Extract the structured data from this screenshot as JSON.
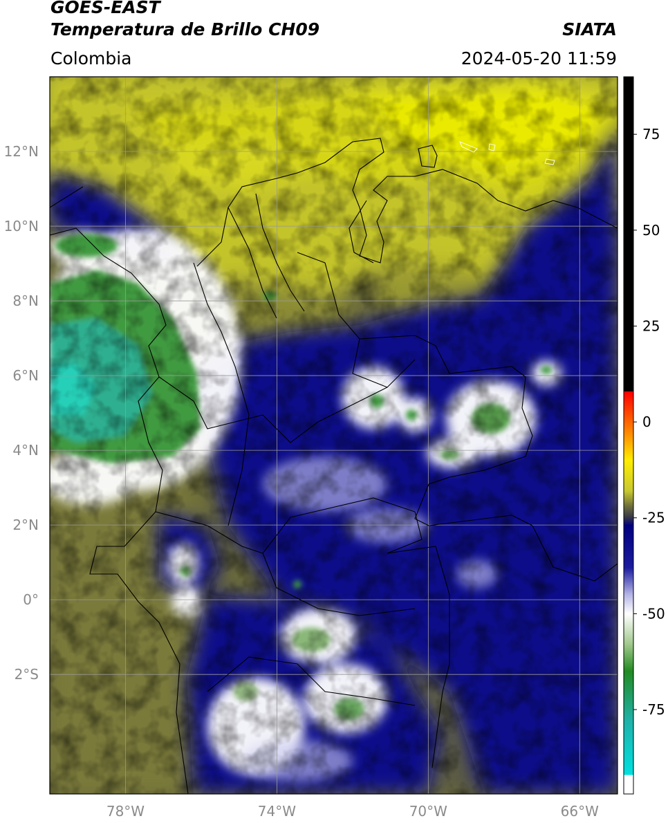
{
  "header": {
    "title_line1": "GOES-EAST",
    "title_line2": "Temperatura de Brillo CH09",
    "agency": "SIATA",
    "region": "Colombia",
    "timestamp": "2024-05-20 11:59"
  },
  "map": {
    "lon_range": [
      -80,
      -65
    ],
    "lat_range": [
      -5.2,
      14
    ],
    "lon_ticks": [
      {
        "value": -78,
        "label": "78°W"
      },
      {
        "value": -74,
        "label": "74°W"
      },
      {
        "value": -70,
        "label": "70°W"
      },
      {
        "value": -66,
        "label": "66°W"
      }
    ],
    "lat_ticks": [
      {
        "value": 12,
        "label": "12°N"
      },
      {
        "value": 10,
        "label": "10°N"
      },
      {
        "value": 8,
        "label": "8°N"
      },
      {
        "value": 6,
        "label": "6°N"
      },
      {
        "value": 4,
        "label": "4°N"
      },
      {
        "value": 2,
        "label": "2°N"
      },
      {
        "value": 0,
        "label": "0°"
      },
      {
        "value": -2,
        "label": "2°S"
      }
    ],
    "grid": true
  },
  "colorbar": {
    "range": [
      -97,
      90
    ],
    "ticks": [
      {
        "value": 75,
        "label": "75"
      },
      {
        "value": 50,
        "label": "50"
      },
      {
        "value": 25,
        "label": "25"
      },
      {
        "value": 0,
        "label": "0"
      },
      {
        "value": -25,
        "label": "-25"
      },
      {
        "value": -50,
        "label": "-50"
      },
      {
        "value": -75,
        "label": "-75"
      }
    ],
    "stops": [
      {
        "value": 90,
        "color": "#000000"
      },
      {
        "value": 8,
        "color": "#000000"
      },
      {
        "value": 7.9,
        "color": "#ff0000"
      },
      {
        "value": -3,
        "color": "#ff8c00"
      },
      {
        "value": -10,
        "color": "#ffee00"
      },
      {
        "value": -18,
        "color": "#c8c832"
      },
      {
        "value": -22,
        "color": "#6e6e3c"
      },
      {
        "value": -25,
        "color": "#34344a"
      },
      {
        "value": -27,
        "color": "#000080"
      },
      {
        "value": -38,
        "color": "#1c1ca0"
      },
      {
        "value": -45,
        "color": "#b4b4e6"
      },
      {
        "value": -50,
        "color": "#ffffff"
      },
      {
        "value": -58,
        "color": "#a0c88c"
      },
      {
        "value": -65,
        "color": "#228b22"
      },
      {
        "value": -78,
        "color": "#20b2aa"
      },
      {
        "value": -92,
        "color": "#00e0e0"
      },
      {
        "value": -92.1,
        "color": "#ffffff"
      },
      {
        "value": -97,
        "color": "#ffffff"
      }
    ]
  },
  "palette": {
    "yellow": "#eaea00",
    "olive": "#c3c32a",
    "dark_olive": "#6b6b3a",
    "navy": "#0a0a8a",
    "white": "#ffffff",
    "green": "#3f9a3f",
    "teal": "#2fc8a8",
    "boundary": "#000000",
    "grid": "#9a9a9a"
  }
}
